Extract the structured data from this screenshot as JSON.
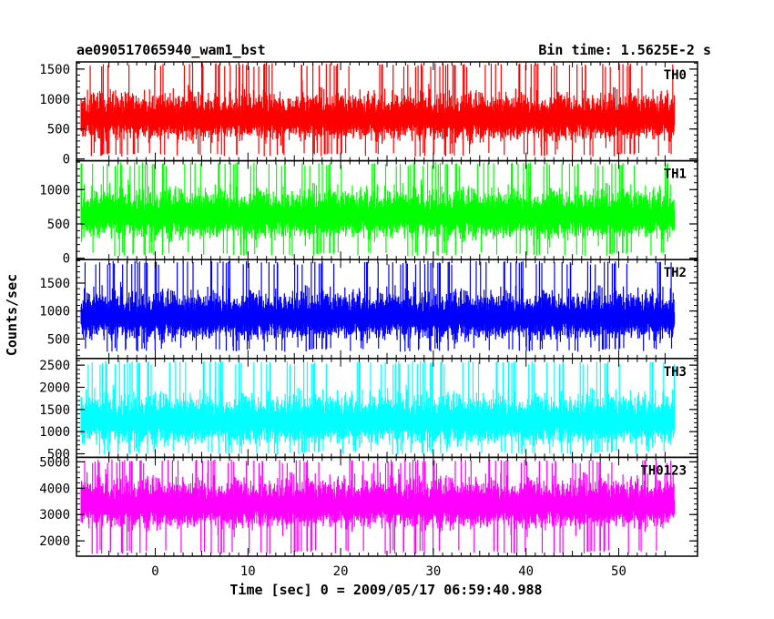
{
  "header": {
    "title": "ae090517065940_wam1_bst",
    "bin_time": "Bin time: 1.5625E-2 s"
  },
  "chart_data": {
    "type": "line",
    "xlabel": "Time [sec] 0 = 2009/05/17 06:59:40.988",
    "ylabel": "Counts/sec",
    "xlim": [
      -8.5,
      58.5
    ],
    "x_ticks": [
      0,
      10,
      20,
      30,
      40,
      50
    ],
    "x_data_range": [
      -8,
      56
    ],
    "panels": [
      {
        "name": "TH0",
        "color": "#ff0000",
        "ylim": [
          -30,
          1620
        ],
        "y_ticks": [
          0,
          500,
          1000,
          1500
        ],
        "baseline": 650,
        "spread": 210,
        "low": 40,
        "high": 1600
      },
      {
        "name": "TH1",
        "color": "#00ff00",
        "ylim": [
          -20,
          1420
        ],
        "y_ticks": [
          0,
          500,
          1000
        ],
        "baseline": 600,
        "spread": 190,
        "low": 30,
        "high": 1400
      },
      {
        "name": "TH2",
        "color": "#0000ff",
        "ylim": [
          150,
          1920
        ],
        "y_ticks": [
          500,
          1000,
          1500
        ],
        "baseline": 860,
        "spread": 230,
        "low": 270,
        "high": 1900
      },
      {
        "name": "TH3",
        "color": "#00ffff",
        "ylim": [
          420,
          2650
        ],
        "y_ticks": [
          500,
          1000,
          1500,
          2000,
          2500
        ],
        "baseline": 1200,
        "spread": 300,
        "low": 480,
        "high": 2600
      },
      {
        "name": "TH0123",
        "color": "#ff00ff",
        "ylim": [
          1420,
          5170
        ],
        "y_ticks": [
          2000,
          3000,
          4000,
          5000
        ],
        "baseline": 3300,
        "spread": 500,
        "low": 1500,
        "high": 5100
      }
    ]
  }
}
